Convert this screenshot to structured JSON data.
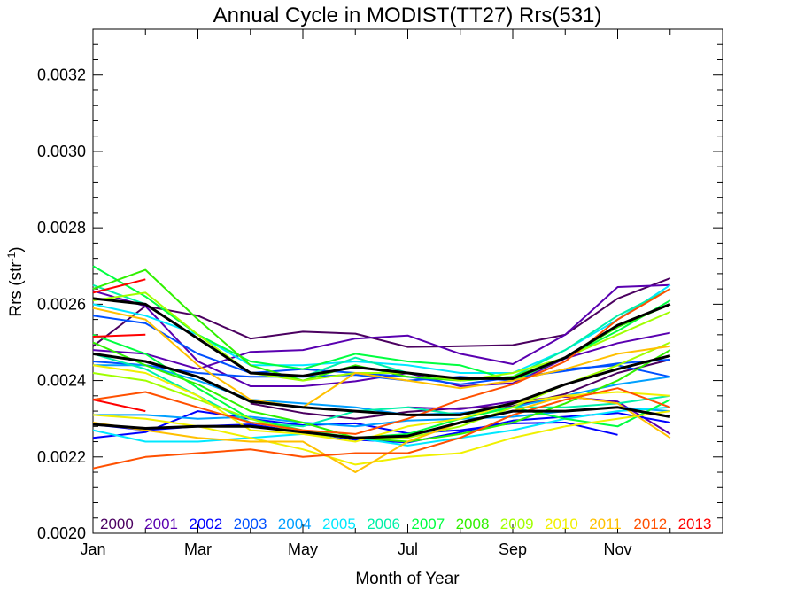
{
  "chart_data": {
    "type": "line",
    "title": "Annual Cycle in MODIST(TT27) Rrs(531)",
    "xlabel": "Month of Year",
    "ylabel": "Rrs (str",
    "ylabel_sup": "-1",
    "ylabel_close": ")",
    "x_ticks": [
      {
        "x": 1,
        "label": "Jan"
      },
      {
        "x": 3,
        "label": "Mar"
      },
      {
        "x": 5,
        "label": "May"
      },
      {
        "x": 7,
        "label": "Jul"
      },
      {
        "x": 9,
        "label": "Sep"
      },
      {
        "x": 11,
        "label": "Nov"
      }
    ],
    "xlim": [
      1,
      13
    ],
    "ylim": [
      0.002,
      0.00332
    ],
    "y_ticks": [
      {
        "y": 0.002,
        "label": "0.0020"
      },
      {
        "y": 0.0022,
        "label": "0.0022"
      },
      {
        "y": 0.0024,
        "label": "0.0024"
      },
      {
        "y": 0.0026,
        "label": "0.0026"
      },
      {
        "y": 0.0028,
        "label": "0.0028"
      },
      {
        "y": 0.003,
        "label": "0.0030"
      },
      {
        "y": 0.0032,
        "label": "0.0032"
      }
    ],
    "legend_placement": "bottom",
    "grid": false,
    "series": [
      {
        "name": "2000",
        "color": "#4b0060",
        "x": [
          1,
          2,
          3,
          4,
          5,
          6,
          7,
          8,
          9,
          10,
          11,
          12
        ],
        "values": [
          0.00249,
          0.002595,
          0.00257,
          0.00251,
          0.002528,
          0.002523,
          0.002488,
          0.00249,
          0.002493,
          0.00252,
          0.002615,
          0.002668
        ]
      },
      {
        "name": "2000",
        "color": "#4b0060",
        "x": [
          4,
          5,
          6,
          7,
          8,
          9,
          10,
          11,
          12
        ],
        "values": [
          0.00234,
          0.002315,
          0.0023,
          0.002318,
          0.002328,
          0.002333,
          0.002365,
          0.00242,
          0.002455
        ]
      },
      {
        "name": "2001",
        "color": "#5a00b0",
        "x": [
          1,
          2,
          3,
          4,
          5,
          6,
          7,
          8,
          9,
          10,
          11,
          12
        ],
        "values": [
          0.00248,
          0.00247,
          0.00243,
          0.002475,
          0.00248,
          0.00251,
          0.002518,
          0.00247,
          0.002443,
          0.00252,
          0.002645,
          0.00265
        ]
      },
      {
        "name": "2001",
        "color": "#5a00b0",
        "x": [
          1,
          2,
          3,
          4,
          5,
          6,
          7,
          8,
          9,
          10,
          11,
          12
        ],
        "values": [
          0.002635,
          0.002595,
          0.00245,
          0.002385,
          0.002385,
          0.002398,
          0.00242,
          0.002385,
          0.002393,
          0.002458,
          0.002498,
          0.002525
        ]
      },
      {
        "name": "2001",
        "color": "#5a00b0",
        "x": [
          7,
          8,
          9,
          10,
          11,
          12
        ],
        "values": [
          0.00233,
          0.002325,
          0.002345,
          0.002358,
          0.002345,
          0.00226
        ]
      },
      {
        "name": "2002",
        "color": "#0000ff",
        "x": [
          1,
          2,
          3,
          4,
          5,
          6,
          7,
          8,
          9,
          10,
          11,
          12
        ],
        "values": [
          0.002285,
          0.00227,
          0.00228,
          0.002285,
          0.002265,
          0.002245,
          0.002238,
          0.002265,
          0.002295,
          0.002305,
          0.002315,
          0.00229
        ]
      },
      {
        "name": "2002",
        "color": "#0000ff",
        "x": [
          1,
          2,
          3,
          4,
          5,
          6,
          7,
          8,
          9,
          10,
          11
        ],
        "values": [
          0.00225,
          0.002265,
          0.00232,
          0.0023,
          0.002283,
          0.002288,
          0.002262,
          0.00227,
          0.002288,
          0.00229,
          0.002258
        ]
      },
      {
        "name": "2003",
        "color": "#0050ff",
        "x": [
          1,
          2,
          3,
          4,
          5,
          6,
          7,
          8,
          9,
          10,
          11,
          12
        ],
        "values": [
          0.00245,
          0.00244,
          0.00242,
          0.00241,
          0.00241,
          0.002415,
          0.0024,
          0.00241,
          0.0024,
          0.00243,
          0.00244,
          0.00241
        ]
      },
      {
        "name": "2003",
        "color": "#0050ff",
        "x": [
          1,
          2,
          3,
          4,
          5,
          6,
          7,
          8,
          9,
          10,
          11,
          12
        ],
        "values": [
          0.00257,
          0.00255,
          0.00247,
          0.00242,
          0.00243,
          0.00242,
          0.00241,
          0.00239,
          0.002408,
          0.002425,
          0.002445,
          0.002455
        ]
      },
      {
        "name": "2004",
        "color": "#00a0ff",
        "x": [
          1,
          2,
          3,
          4,
          5,
          6,
          7,
          8,
          9,
          10,
          11,
          12
        ],
        "values": [
          0.00231,
          0.00231,
          0.0023,
          0.002305,
          0.00229,
          0.00228,
          0.002295,
          0.0023,
          0.002305,
          0.00232,
          0.00233,
          0.00232
        ]
      },
      {
        "name": "2004",
        "color": "#00a0ff",
        "x": [
          1,
          2,
          3,
          4,
          5,
          6,
          7,
          8,
          9,
          10,
          11,
          12
        ],
        "values": [
          0.00244,
          0.00244,
          0.0024,
          0.00235,
          0.00234,
          0.00233,
          0.00231,
          0.002315,
          0.00233,
          0.00236,
          0.00239,
          0.00241
        ]
      },
      {
        "name": "2005",
        "color": "#00e8ff",
        "x": [
          1,
          2,
          3,
          4,
          5,
          6,
          7,
          8,
          9,
          10,
          11,
          12
        ],
        "values": [
          0.00227,
          0.00224,
          0.00224,
          0.00225,
          0.00226,
          0.00225,
          0.00223,
          0.00225,
          0.00227,
          0.0023,
          0.00232,
          0.00233
        ]
      },
      {
        "name": "2005",
        "color": "#00e8ff",
        "x": [
          1,
          2,
          3,
          4,
          5,
          6,
          7,
          8,
          9,
          10,
          11,
          12
        ],
        "values": [
          0.0026,
          0.00257,
          0.00252,
          0.00244,
          0.00244,
          0.00245,
          0.00244,
          0.00242,
          0.00242,
          0.00248,
          0.00256,
          0.00265
        ]
      },
      {
        "name": "2006",
        "color": "#00f0a8",
        "x": [
          1,
          2,
          3,
          4,
          5,
          6,
          7,
          8,
          9,
          10,
          11,
          12
        ],
        "values": [
          0.00265,
          0.0026,
          0.00251,
          0.00242,
          0.00241,
          0.00246,
          0.00242,
          0.0024,
          0.00241,
          0.00248,
          0.00257,
          0.00264
        ]
      },
      {
        "name": "2006",
        "color": "#00f0a8",
        "x": [
          1,
          2,
          3,
          4,
          5,
          6,
          7,
          8,
          9,
          10,
          11,
          12
        ],
        "values": [
          0.00247,
          0.00243,
          0.00236,
          0.00229,
          0.00228,
          0.00232,
          0.00233,
          0.00231,
          0.00233,
          0.00233,
          0.00234,
          0.00236
        ]
      },
      {
        "name": "2007",
        "color": "#00ff40",
        "x": [
          1,
          2,
          3,
          4,
          5,
          6,
          7,
          8,
          9,
          10,
          11,
          12
        ],
        "values": [
          0.0027,
          0.00262,
          0.00252,
          0.00245,
          0.00243,
          0.00247,
          0.00245,
          0.00244,
          0.0024,
          0.00246,
          0.00253,
          0.00261
        ]
      },
      {
        "name": "2007",
        "color": "#00ff40",
        "x": [
          1,
          2,
          3,
          4,
          5,
          6,
          7,
          8,
          9,
          10,
          11,
          12
        ],
        "values": [
          0.00252,
          0.00247,
          0.00238,
          0.0023,
          0.00227,
          0.00225,
          0.00226,
          0.0023,
          0.00233,
          0.0023,
          0.00228,
          0.00235
        ]
      },
      {
        "name": "2008",
        "color": "#30f000",
        "x": [
          1,
          2,
          3,
          4,
          5,
          6,
          7,
          8,
          9,
          10,
          11,
          12
        ],
        "values": [
          0.00264,
          0.00269,
          0.00256,
          0.00244,
          0.0024,
          0.00244,
          0.00241,
          0.0024,
          0.00241,
          0.00246,
          0.00254,
          0.0026
        ]
      },
      {
        "name": "2008",
        "color": "#30f000",
        "x": [
          1,
          2,
          3,
          4,
          5,
          6,
          7,
          8,
          9,
          10,
          11,
          12
        ],
        "values": [
          0.0025,
          0.00244,
          0.00239,
          0.00232,
          0.00229,
          0.00225,
          0.00224,
          0.00226,
          0.00229,
          0.00234,
          0.0024,
          0.00248
        ]
      },
      {
        "name": "2009",
        "color": "#a0ff00",
        "x": [
          1,
          2,
          3,
          4,
          5,
          6,
          7,
          8,
          9,
          10,
          11,
          12
        ],
        "values": [
          0.00261,
          0.00263,
          0.00252,
          0.00242,
          0.0024,
          0.00242,
          0.00242,
          0.0024,
          0.00242,
          0.00246,
          0.00252,
          0.00258
        ]
      },
      {
        "name": "2009",
        "color": "#a0ff00",
        "x": [
          1,
          2,
          3,
          4,
          5,
          6,
          7,
          8,
          9,
          10,
          11,
          12
        ],
        "values": [
          0.00242,
          0.0024,
          0.00235,
          0.0023,
          0.00226,
          0.00225,
          0.00225,
          0.00228,
          0.00233,
          0.00239,
          0.00244,
          0.0025
        ]
      },
      {
        "name": "2010",
        "color": "#f0f000",
        "x": [
          1,
          2,
          3,
          4,
          5,
          6,
          7,
          8,
          9,
          10,
          11,
          12
        ],
        "values": [
          0.00231,
          0.0023,
          0.00228,
          0.00225,
          0.00222,
          0.00218,
          0.0022,
          0.00221,
          0.00225,
          0.00228,
          0.0023,
          0.00232
        ]
      },
      {
        "name": "2010",
        "color": "#f0f000",
        "x": [
          1,
          2,
          3,
          4,
          5,
          6,
          7,
          8,
          9,
          10,
          11,
          12
        ],
        "values": [
          0.00244,
          0.00242,
          0.00236,
          0.00227,
          0.00226,
          0.00224,
          0.00228,
          0.0023,
          0.00234,
          0.00236,
          0.00237,
          0.00236
        ]
      },
      {
        "name": "2011",
        "color": "#ffc000",
        "x": [
          1,
          2,
          3,
          4,
          5,
          6,
          7,
          8,
          9,
          10,
          11,
          12
        ],
        "values": [
          0.00259,
          0.00256,
          0.00244,
          0.00235,
          0.00233,
          0.00242,
          0.0024,
          0.00238,
          0.0024,
          0.00243,
          0.00247,
          0.00249
        ]
      },
      {
        "name": "2011",
        "color": "#ffc000",
        "x": [
          1,
          2,
          3,
          4,
          5,
          6,
          7,
          8,
          9,
          10,
          11,
          12
        ],
        "values": [
          0.00229,
          0.00227,
          0.00225,
          0.00224,
          0.00224,
          0.00216,
          0.00224,
          0.00229,
          0.00232,
          0.00236,
          0.00234,
          0.00225
        ]
      },
      {
        "name": "2012",
        "color": "#ff5000",
        "x": [
          1,
          2,
          3,
          4,
          5,
          6,
          7,
          8,
          9,
          10,
          11,
          12
        ],
        "values": [
          0.00217,
          0.0022,
          0.00221,
          0.00222,
          0.0022,
          0.00221,
          0.00221,
          0.00225,
          0.00231,
          0.00235,
          0.00238,
          0.00233
        ]
      },
      {
        "name": "2012",
        "color": "#ff5000",
        "x": [
          1,
          2,
          3,
          4,
          5,
          6,
          7,
          8,
          9,
          10,
          11,
          12
        ],
        "values": [
          0.00235,
          0.00237,
          0.00233,
          0.00229,
          0.00227,
          0.00226,
          0.0023,
          0.00235,
          0.00239,
          0.00245,
          0.00256,
          0.00264
        ]
      },
      {
        "name": "2013",
        "color": "#ff0000",
        "x": [
          1,
          2
        ],
        "values": [
          0.00263,
          0.002665
        ]
      },
      {
        "name": "2013",
        "color": "#ff0000",
        "x": [
          1,
          2
        ],
        "values": [
          0.002515,
          0.00252
        ]
      },
      {
        "name": "2013",
        "color": "#ff0000",
        "x": [
          1,
          2
        ],
        "values": [
          0.00235,
          0.00232
        ]
      },
      {
        "name": "",
        "color": "#000000",
        "bold": true,
        "x": [
          1,
          2,
          3,
          4,
          5,
          6,
          7,
          8,
          9,
          10,
          11,
          12
        ],
        "values": [
          0.002615,
          0.0026,
          0.00251,
          0.00242,
          0.002412,
          0.002435,
          0.00242,
          0.002405,
          0.002405,
          0.00246,
          0.002545,
          0.0026
        ]
      },
      {
        "name": "",
        "color": "#000000",
        "bold": true,
        "x": [
          1,
          2,
          3,
          4,
          5,
          6,
          7,
          8,
          9,
          10,
          11,
          12
        ],
        "values": [
          0.00247,
          0.00245,
          0.00241,
          0.002345,
          0.00233,
          0.00232,
          0.00231,
          0.00231,
          0.00234,
          0.00239,
          0.00243,
          0.002465
        ]
      },
      {
        "name": "",
        "color": "#000000",
        "bold": true,
        "x": [
          1,
          2,
          3,
          4,
          5,
          6,
          7,
          8,
          9,
          10,
          11,
          12
        ],
        "values": [
          0.002285,
          0.002275,
          0.00228,
          0.00228,
          0.002265,
          0.00225,
          0.002255,
          0.00229,
          0.00232,
          0.00232,
          0.00233,
          0.002305
        ]
      }
    ],
    "legend": [
      {
        "label": "2000",
        "color": "#4b0060"
      },
      {
        "label": "2001",
        "color": "#5a00b0"
      },
      {
        "label": "2002",
        "color": "#0000ff"
      },
      {
        "label": "2003",
        "color": "#0050ff"
      },
      {
        "label": "2004",
        "color": "#00a0ff"
      },
      {
        "label": "2005",
        "color": "#00e8ff"
      },
      {
        "label": "2006",
        "color": "#00f0a8"
      },
      {
        "label": "2007",
        "color": "#00ff40"
      },
      {
        "label": "2008",
        "color": "#30f000"
      },
      {
        "label": "2009",
        "color": "#a0ff00"
      },
      {
        "label": "2010",
        "color": "#f0f000"
      },
      {
        "label": "2011",
        "color": "#ffc000"
      },
      {
        "label": "2012",
        "color": "#ff5000"
      },
      {
        "label": "2013",
        "color": "#ff0000"
      }
    ]
  }
}
